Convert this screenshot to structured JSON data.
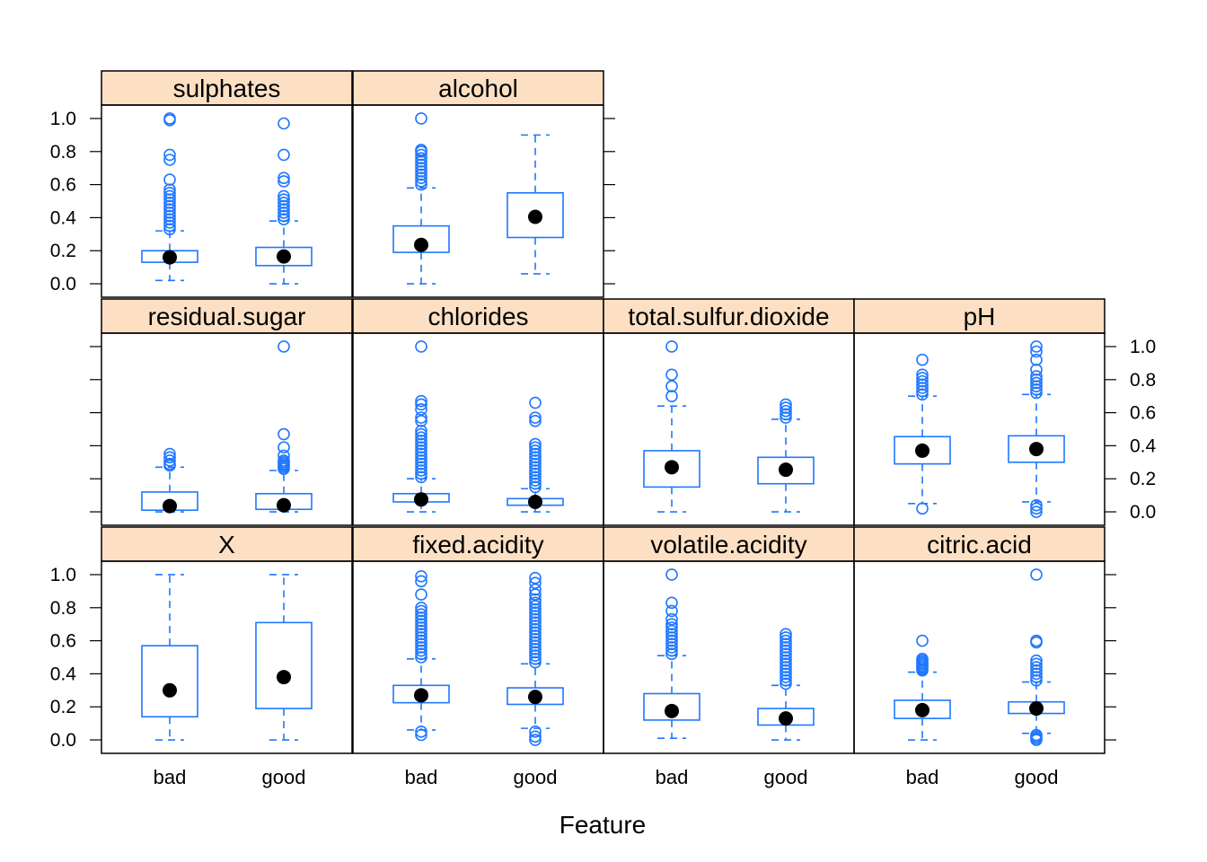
{
  "chart_data": {
    "type": "box",
    "xlabel": "Feature",
    "categories": [
      "bad",
      "good"
    ],
    "ylim": [
      0,
      1
    ],
    "yticks": [
      0.0,
      0.2,
      0.4,
      0.6,
      0.8,
      1.0
    ],
    "ytick_labels": [
      "0.0",
      "0.2",
      "0.4",
      "0.6",
      "0.8",
      "1.0"
    ],
    "colors": {
      "box": "#1f77ff",
      "strip": "#fde0c4",
      "median": "#000000"
    },
    "panels": [
      {
        "name": "sulphates",
        "row": 0,
        "col": 0,
        "boxes": [
          {
            "category": "bad",
            "min": 0.02,
            "q1": 0.13,
            "median": 0.16,
            "q3": 0.2,
            "max": 0.32,
            "outliers": [
              0.33,
              0.35,
              0.37,
              0.39,
              0.41,
              0.43,
              0.45,
              0.47,
              0.49,
              0.51,
              0.53,
              0.55,
              0.57,
              0.63,
              0.75,
              0.78,
              0.99,
              1.0
            ]
          },
          {
            "category": "good",
            "min": 0.0,
            "q1": 0.11,
            "median": 0.165,
            "q3": 0.22,
            "max": 0.38,
            "outliers": [
              0.39,
              0.41,
              0.43,
              0.45,
              0.47,
              0.49,
              0.51,
              0.53,
              0.62,
              0.64,
              0.78,
              0.97
            ]
          }
        ]
      },
      {
        "name": "alcohol",
        "row": 0,
        "col": 1,
        "boxes": [
          {
            "category": "bad",
            "min": 0.0,
            "q1": 0.19,
            "median": 0.235,
            "q3": 0.35,
            "max": 0.58,
            "outliers": [
              0.6,
              0.62,
              0.64,
              0.66,
              0.68,
              0.7,
              0.72,
              0.74,
              0.76,
              0.78,
              0.8,
              0.81,
              1.0
            ]
          },
          {
            "category": "good",
            "min": 0.06,
            "q1": 0.28,
            "median": 0.405,
            "q3": 0.55,
            "max": 0.9,
            "outliers": []
          }
        ]
      },
      {
        "name": "residual.sugar",
        "row": 1,
        "col": 0,
        "boxes": [
          {
            "category": "bad",
            "min": 0.0,
            "q1": 0.01,
            "median": 0.035,
            "q3": 0.12,
            "max": 0.27,
            "outliers": [
              0.28,
              0.29,
              0.31,
              0.33,
              0.35
            ]
          },
          {
            "category": "good",
            "min": 0.0,
            "q1": 0.015,
            "median": 0.04,
            "q3": 0.11,
            "max": 0.25,
            "outliers": [
              0.26,
              0.27,
              0.28,
              0.29,
              0.3,
              0.31,
              0.34,
              0.39,
              0.47,
              1.0
            ]
          }
        ]
      },
      {
        "name": "chlorides",
        "row": 1,
        "col": 1,
        "boxes": [
          {
            "category": "bad",
            "min": 0.0,
            "q1": 0.06,
            "median": 0.075,
            "q3": 0.11,
            "max": 0.2,
            "outliers": [
              0.21,
              0.23,
              0.25,
              0.27,
              0.29,
              0.31,
              0.33,
              0.35,
              0.37,
              0.39,
              0.41,
              0.43,
              0.45,
              0.47,
              0.49,
              0.55,
              0.57,
              0.62,
              0.65,
              0.67,
              1.0
            ]
          },
          {
            "category": "good",
            "min": 0.0,
            "q1": 0.04,
            "median": 0.06,
            "q3": 0.08,
            "max": 0.14,
            "outliers": [
              0.15,
              0.17,
              0.19,
              0.21,
              0.23,
              0.25,
              0.27,
              0.29,
              0.31,
              0.33,
              0.35,
              0.37,
              0.39,
              0.41,
              0.55,
              0.57,
              0.66
            ]
          }
        ]
      },
      {
        "name": "total.sulfur.dioxide",
        "row": 1,
        "col": 2,
        "boxes": [
          {
            "category": "bad",
            "min": 0.0,
            "q1": 0.15,
            "median": 0.27,
            "q3": 0.37,
            "max": 0.64,
            "outliers": [
              0.7,
              0.76,
              0.83,
              1.0
            ]
          },
          {
            "category": "good",
            "min": 0.0,
            "q1": 0.17,
            "median": 0.255,
            "q3": 0.33,
            "max": 0.56,
            "outliers": [
              0.57,
              0.59,
              0.61,
              0.63,
              0.65
            ]
          }
        ]
      },
      {
        "name": "pH",
        "row": 1,
        "col": 3,
        "boxes": [
          {
            "category": "bad",
            "min": 0.05,
            "q1": 0.29,
            "median": 0.37,
            "q3": 0.455,
            "max": 0.7,
            "outliers": [
              0.02,
              0.71,
              0.73,
              0.75,
              0.77,
              0.79,
              0.81,
              0.83,
              0.92
            ]
          },
          {
            "category": "good",
            "min": 0.06,
            "q1": 0.3,
            "median": 0.38,
            "q3": 0.46,
            "max": 0.71,
            "outliers": [
              0.0,
              0.02,
              0.04,
              0.72,
              0.74,
              0.76,
              0.78,
              0.8,
              0.82,
              0.86,
              0.92,
              0.97,
              1.0
            ]
          }
        ]
      },
      {
        "name": "X",
        "row": 2,
        "col": 0,
        "boxes": [
          {
            "category": "bad",
            "min": 0.0,
            "q1": 0.14,
            "median": 0.3,
            "q3": 0.57,
            "max": 1.0,
            "outliers": []
          },
          {
            "category": "good",
            "min": 0.0,
            "q1": 0.19,
            "median": 0.38,
            "q3": 0.71,
            "max": 1.0,
            "outliers": []
          }
        ]
      },
      {
        "name": "fixed.acidity",
        "row": 2,
        "col": 1,
        "boxes": [
          {
            "category": "bad",
            "min": 0.06,
            "q1": 0.225,
            "median": 0.27,
            "q3": 0.33,
            "max": 0.49,
            "outliers": [
              0.03,
              0.05,
              0.5,
              0.52,
              0.54,
              0.56,
              0.58,
              0.6,
              0.62,
              0.64,
              0.66,
              0.68,
              0.7,
              0.72,
              0.74,
              0.76,
              0.78,
              0.8,
              0.88,
              0.96,
              0.99
            ]
          },
          {
            "category": "good",
            "min": 0.07,
            "q1": 0.215,
            "median": 0.26,
            "q3": 0.315,
            "max": 0.46,
            "outliers": [
              0.0,
              0.02,
              0.05,
              0.47,
              0.49,
              0.51,
              0.53,
              0.55,
              0.57,
              0.59,
              0.61,
              0.63,
              0.65,
              0.67,
              0.69,
              0.71,
              0.73,
              0.75,
              0.77,
              0.79,
              0.81,
              0.83,
              0.85,
              0.88,
              0.91,
              0.95,
              0.98
            ]
          }
        ]
      },
      {
        "name": "volatile.acidity",
        "row": 2,
        "col": 2,
        "boxes": [
          {
            "category": "bad",
            "min": 0.01,
            "q1": 0.12,
            "median": 0.175,
            "q3": 0.28,
            "max": 0.51,
            "outliers": [
              0.52,
              0.54,
              0.56,
              0.58,
              0.6,
              0.62,
              0.64,
              0.66,
              0.68,
              0.7,
              0.73,
              0.78,
              0.83,
              1.0
            ]
          },
          {
            "category": "good",
            "min": 0.0,
            "q1": 0.09,
            "median": 0.13,
            "q3": 0.19,
            "max": 0.33,
            "outliers": [
              0.34,
              0.36,
              0.38,
              0.4,
              0.42,
              0.44,
              0.46,
              0.48,
              0.5,
              0.52,
              0.54,
              0.56,
              0.58,
              0.6,
              0.62,
              0.64
            ]
          }
        ]
      },
      {
        "name": "citric.acid",
        "row": 2,
        "col": 3,
        "boxes": [
          {
            "category": "bad",
            "min": 0.0,
            "q1": 0.13,
            "median": 0.18,
            "q3": 0.24,
            "max": 0.41,
            "outliers": [
              0.42,
              0.43,
              0.44,
              0.45,
              0.46,
              0.47,
              0.48,
              0.49,
              0.6
            ]
          },
          {
            "category": "good",
            "min": 0.04,
            "q1": 0.16,
            "median": 0.19,
            "q3": 0.23,
            "max": 0.35,
            "outliers": [
              0.0,
              0.01,
              0.02,
              0.03,
              0.36,
              0.38,
              0.4,
              0.42,
              0.44,
              0.46,
              0.48,
              0.59,
              0.6,
              1.0
            ]
          }
        ]
      }
    ]
  }
}
